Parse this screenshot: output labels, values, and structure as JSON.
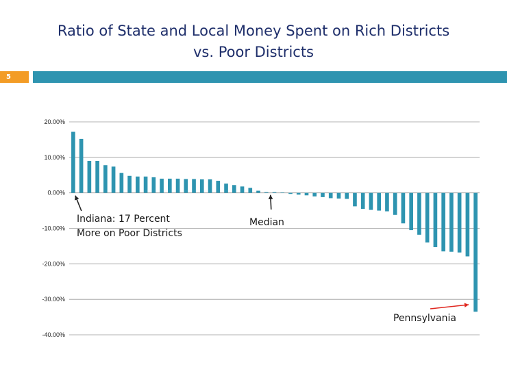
{
  "slide": {
    "title_line1": "Ratio of State and Local Money Spent on Rich Districts",
    "title_line2": "vs. Poor Districts",
    "page_number": "5"
  },
  "colors": {
    "title": "#1f2f6b",
    "header_bar": "#2e94b0",
    "page_box": "#f39c26",
    "bar": "#2e94b0",
    "arrow_black": "#222222",
    "arrow_red": "#e0271f"
  },
  "chart_data": {
    "type": "bar",
    "title": "",
    "xlabel": "",
    "ylabel": "",
    "ylim": [
      -40,
      20
    ],
    "yticks": [
      20,
      10,
      0,
      -10,
      -20,
      -30,
      -40
    ],
    "ytick_labels": [
      "20.00%",
      "10.00%",
      "0.00%",
      "-10.00%",
      "-20.00%",
      "-30.00%",
      "-40.00%"
    ],
    "grid": true,
    "legend": "none",
    "values": [
      17.2,
      15.2,
      9.0,
      9.0,
      7.8,
      7.4,
      5.6,
      4.8,
      4.6,
      4.6,
      4.4,
      4.0,
      4.0,
      4.0,
      3.9,
      3.9,
      3.8,
      3.8,
      3.4,
      2.6,
      2.2,
      1.8,
      1.4,
      0.6,
      0.2,
      0.2,
      0.1,
      -0.3,
      -0.5,
      -0.7,
      -1.0,
      -1.2,
      -1.5,
      -1.6,
      -1.7,
      -3.8,
      -4.5,
      -4.8,
      -5.0,
      -5.2,
      -6.2,
      -8.6,
      -10.5,
      -11.8,
      -14.0,
      -15.3,
      -16.5,
      -16.6,
      -16.8,
      -17.9,
      -33.5
    ],
    "annotations": [
      {
        "text_line1": "Indiana: 17 Percent",
        "text_line2": "More on Poor Districts",
        "bar_index": 0
      },
      {
        "text": "Median",
        "bar_index": 24
      },
      {
        "text": "Pennsylvania",
        "bar_index": 50
      }
    ]
  }
}
